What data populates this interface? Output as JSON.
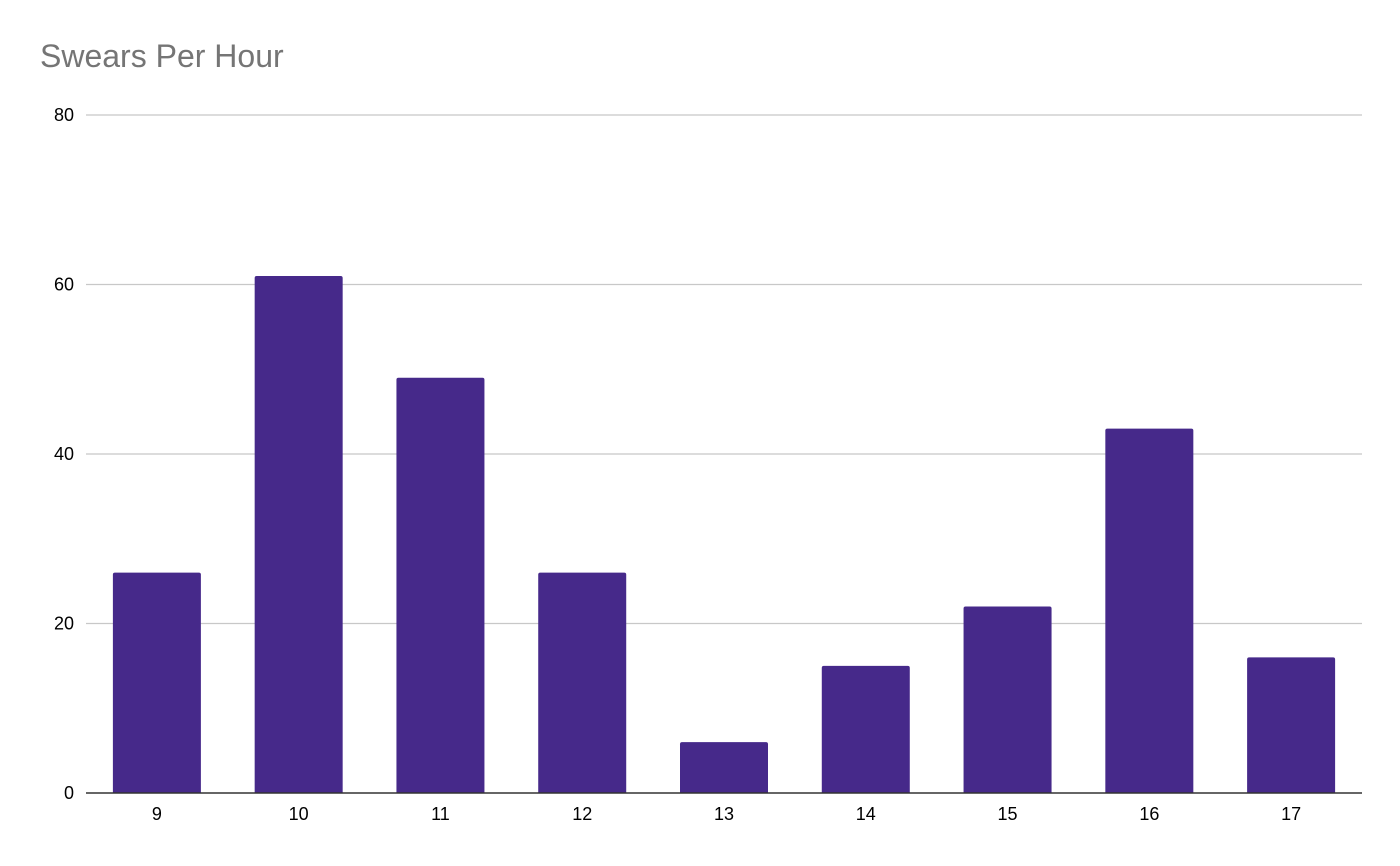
{
  "chart_data": {
    "type": "bar",
    "title": "Swears Per Hour",
    "xlabel": "",
    "ylabel": "",
    "categories": [
      "9",
      "10",
      "11",
      "12",
      "13",
      "14",
      "15",
      "16",
      "17"
    ],
    "values": [
      26,
      61,
      49,
      26,
      6,
      15,
      22,
      43,
      16
    ],
    "ylim": [
      0,
      80
    ],
    "yticks": [
      0,
      20,
      40,
      60,
      80
    ],
    "grid": true,
    "legend": "none",
    "colors": {
      "bar": "#46298a",
      "grid": "#c8c8c8",
      "axis": "#333333",
      "title": "#757575"
    }
  }
}
